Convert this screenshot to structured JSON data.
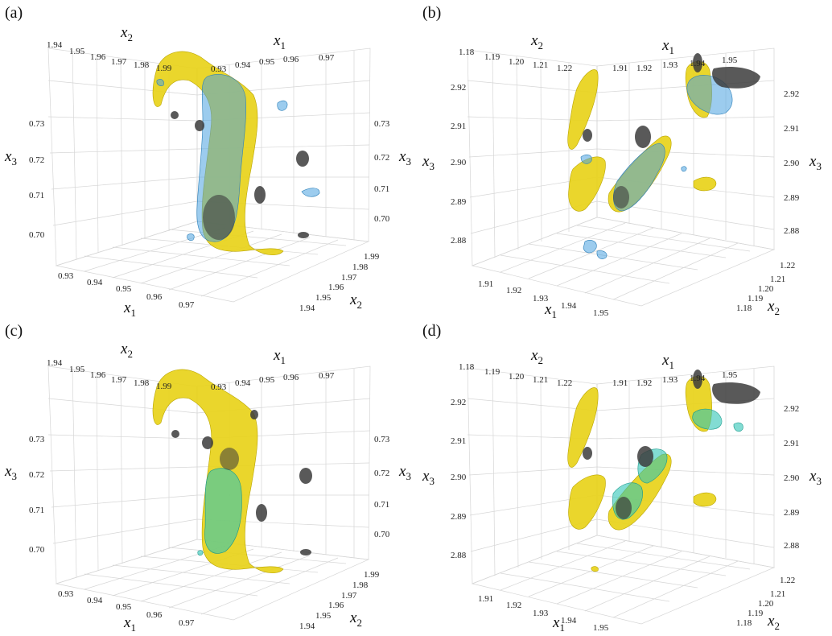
{
  "panels": [
    {
      "label": "(a)",
      "ticks": {
        "x2_back": [
          "1.94",
          "1.95",
          "1.96",
          "1.97",
          "1.98",
          "1.99"
        ],
        "x1_back": [
          "0.93",
          "0.94",
          "0.95",
          "0.96",
          "0.97"
        ],
        "x3_left": [
          "0.73",
          "0.72",
          "0.71",
          "0.70"
        ],
        "x3_right": [
          "0.73",
          "0.72",
          "0.71",
          "0.70"
        ],
        "x1_front": [
          "0.93",
          "0.94",
          "0.95",
          "0.96",
          "0.97"
        ],
        "x2_front": [
          "1.99",
          "1.98",
          "1.97",
          "1.96",
          "1.95",
          "1.94"
        ]
      },
      "overlay_color": "#4aa3e0"
    },
    {
      "label": "(b)",
      "ticks": {
        "x2_back": [
          "1.18",
          "1.19",
          "1.20",
          "1.21",
          "1.22"
        ],
        "x1_back": [
          "1.91",
          "1.92",
          "1.93",
          "1.94",
          "1.95"
        ],
        "x3_left": [
          "2.92",
          "2.91",
          "2.90",
          "2.89",
          "2.88"
        ],
        "x3_right": [
          "2.92",
          "2.91",
          "2.90",
          "2.89",
          "2.88"
        ],
        "x1_front": [
          "1.91",
          "1.92",
          "1.93",
          "1.94",
          "1.95"
        ],
        "x2_front": [
          "1.22",
          "1.21",
          "1.20",
          "1.19",
          "1.18"
        ]
      },
      "overlay_color": "#4aa3e0"
    },
    {
      "label": "(c)",
      "ticks": {
        "x2_back": [
          "1.94",
          "1.95",
          "1.96",
          "1.97",
          "1.98",
          "1.99"
        ],
        "x1_back": [
          "0.93",
          "0.94",
          "0.95",
          "0.96",
          "0.97"
        ],
        "x3_left": [
          "0.73",
          "0.72",
          "0.71",
          "0.70"
        ],
        "x3_right": [
          "0.73",
          "0.72",
          "0.71",
          "0.70"
        ],
        "x1_front": [
          "0.93",
          "0.94",
          "0.95",
          "0.96",
          "0.97"
        ],
        "x2_front": [
          "1.99",
          "1.98",
          "1.97",
          "1.96",
          "1.95",
          "1.94"
        ]
      },
      "overlay_color": "#2ec4b6"
    },
    {
      "label": "(d)",
      "ticks": {
        "x2_back": [
          "1.18",
          "1.19",
          "1.20",
          "1.21",
          "1.22"
        ],
        "x1_back": [
          "1.91",
          "1.92",
          "1.93",
          "1.94",
          "1.95"
        ],
        "x3_left": [
          "2.92",
          "2.91",
          "2.90",
          "2.89",
          "2.88"
        ],
        "x3_right": [
          "2.92",
          "2.91",
          "2.90",
          "2.89",
          "2.88"
        ],
        "x1_front": [
          "1.91",
          "1.92",
          "1.93",
          "1.94",
          "1.95"
        ],
        "x2_front": [
          "1.22",
          "1.21",
          "1.20",
          "1.19",
          "1.18"
        ]
      },
      "overlay_color": "#2ec4b6"
    }
  ],
  "axis_labels": {
    "x1": "x",
    "x1_sub": "1",
    "x2": "x",
    "x2_sub": "2",
    "x3": "x",
    "x3_sub": "3"
  },
  "colors": {
    "yellow": "#e8d21a",
    "gray": "#3c3c3c",
    "grid": "#d6d6d6"
  }
}
